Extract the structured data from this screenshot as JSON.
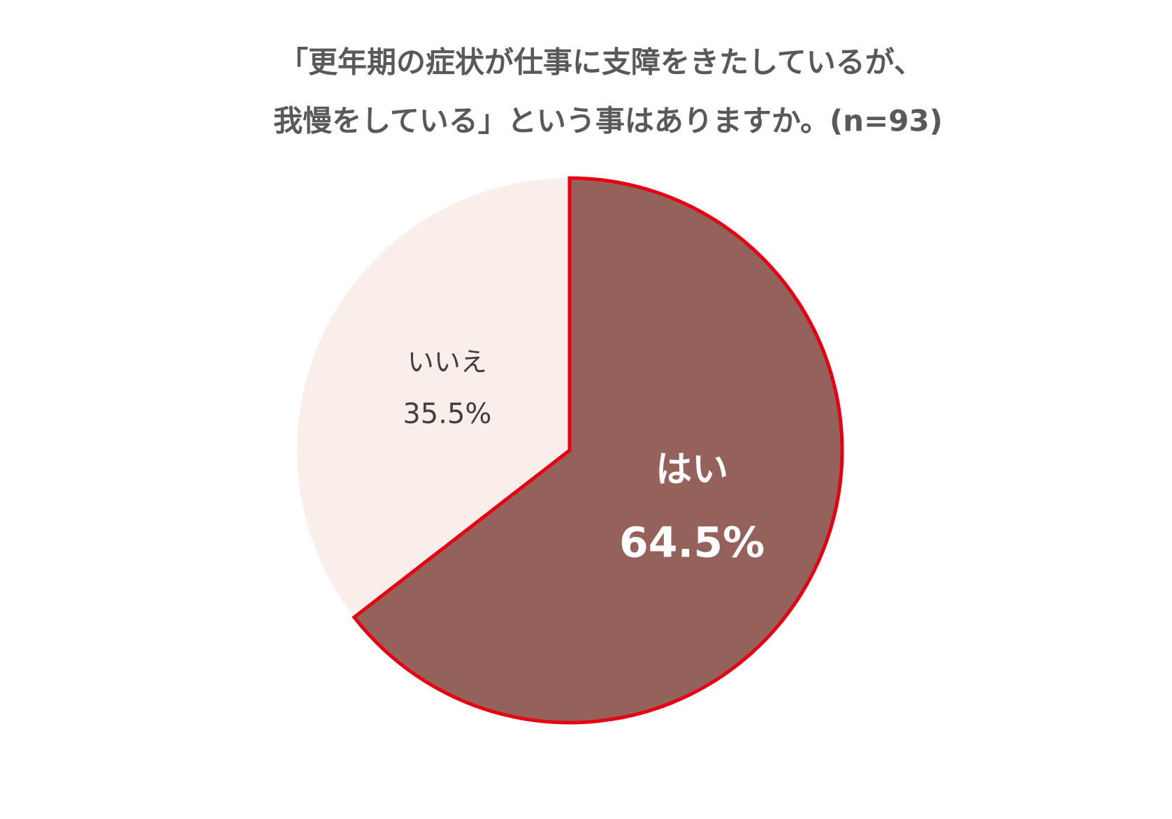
{
  "chart_data": {
    "type": "pie",
    "title": [
      "「更年期の症状が仕事に支障をきたしているが、",
      "我慢をしている」という事はありますか。(n=93)"
    ],
    "categories": [
      "はい",
      "いいえ"
    ],
    "values": [
      64.5,
      35.5
    ],
    "value_labels": [
      "64.5%",
      "35.5%"
    ],
    "colors": [
      "#94625a",
      "#f9eeea"
    ],
    "label_colors": [
      "#ffffff",
      "#404040"
    ],
    "edge_colors": [
      "#e60012",
      "none"
    ]
  }
}
